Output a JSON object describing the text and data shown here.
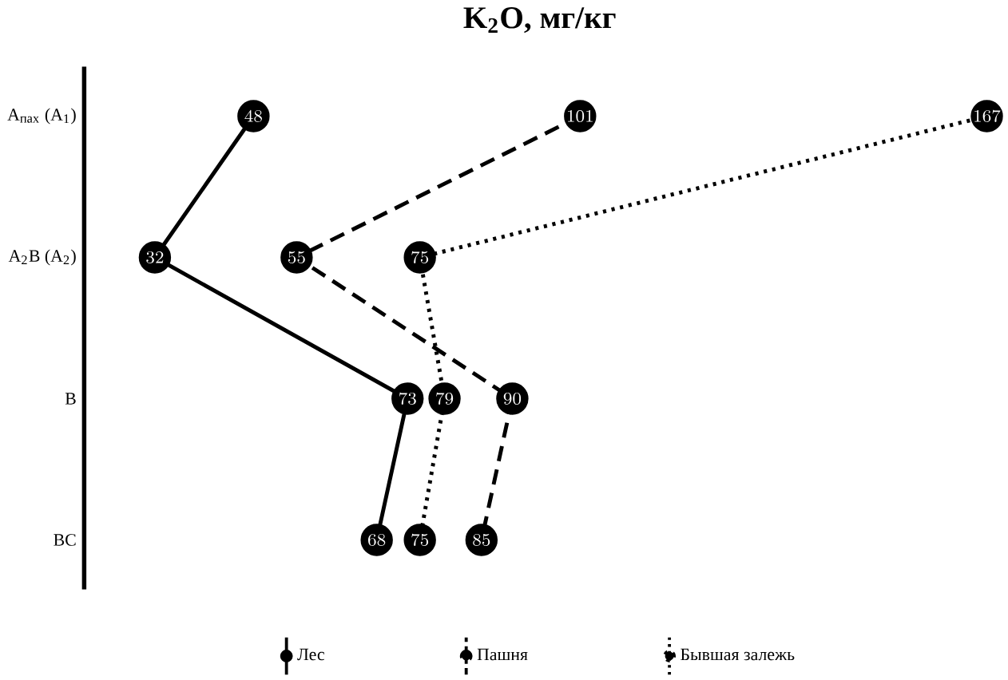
{
  "chart_data": {
    "type": "line",
    "orientation": "horizontal",
    "title": "K$_{2}$O, мг/кг",
    "categories": [
      "A$_{пах}$ (A$_{1}$)",
      "A$_{2}$B (A$_{2}$)",
      "B",
      "BC"
    ],
    "series": [
      {
        "name": "Лес",
        "color": "#000000",
        "line_style": "solid",
        "values": [
          48,
          32,
          73,
          68
        ]
      },
      {
        "name": "Пашня",
        "color": "#000000",
        "line_style": "dashed",
        "values": [
          101,
          55,
          90,
          85
        ]
      },
      {
        "name": "Бывшая залежь",
        "color": "#000000",
        "line_style": "dotted",
        "values": [
          167,
          75,
          79,
          75
        ]
      }
    ],
    "marker": "circle",
    "data_labels": true,
    "legend": "bottom",
    "grid": false
  }
}
